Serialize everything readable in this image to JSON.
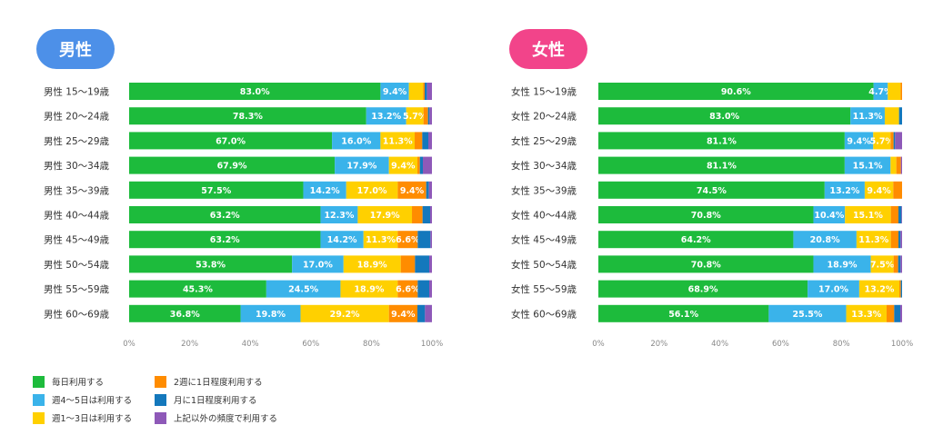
{
  "colors": {
    "male_badge": "#4d90e8",
    "female_badge": "#f2448a",
    "series": [
      "#1dbb3c",
      "#3ab3ea",
      "#ffd000",
      "#ff8c00",
      "#1478bc",
      "#8e59b8"
    ]
  },
  "legend": [
    {
      "label": "毎日利用する"
    },
    {
      "label": "週4～5日は利用する"
    },
    {
      "label": "週1～3日は利用する"
    },
    {
      "label": "2週に1日程度利用する"
    },
    {
      "label": "月に1日程度利用する"
    },
    {
      "label": "上記以外の頻度で利用する"
    }
  ],
  "chart_data": [
    {
      "type": "bar",
      "orientation": "horizontal",
      "stacked": true,
      "title": "男性",
      "categories": [
        "男性 15～19歳",
        "男性 20～24歳",
        "男性 25～29歳",
        "男性 30～34歳",
        "男性 35～39歳",
        "男性 40～44歳",
        "男性 45～49歳",
        "男性 50～54歳",
        "男性 55～59歳",
        "男性 60～69歳"
      ],
      "series": [
        {
          "name": "毎日利用する",
          "values": [
            83.0,
            78.3,
            67.0,
            67.9,
            57.5,
            63.2,
            63.2,
            53.8,
            45.3,
            36.8
          ]
        },
        {
          "name": "週4～5日は利用する",
          "values": [
            9.4,
            13.2,
            16.0,
            17.9,
            14.2,
            12.3,
            14.2,
            17.0,
            24.5,
            19.8
          ]
        },
        {
          "name": "週1～3日は利用する",
          "values": [
            4.7,
            5.7,
            11.3,
            9.4,
            17.0,
            17.9,
            11.3,
            18.9,
            18.9,
            29.2
          ]
        },
        {
          "name": "2週に1日程度利用する",
          "values": [
            0.5,
            1.5,
            2.5,
            0.8,
            9.4,
            3.5,
            6.6,
            4.7,
            6.6,
            9.4
          ]
        },
        {
          "name": "月に1日程度利用する",
          "values": [
            0.8,
            0.5,
            2.0,
            1.0,
            0.9,
            2.5,
            4.2,
            4.7,
            3.8,
            2.5
          ]
        },
        {
          "name": "上記以外の頻度で利用する",
          "values": [
            1.6,
            0.8,
            1.2,
            3.0,
            1.0,
            0.6,
            0.5,
            0.9,
            0.9,
            2.3
          ]
        }
      ],
      "value_labels": [
        [
          "83.0%",
          "9.4%",
          "",
          "",
          "",
          ""
        ],
        [
          "78.3%",
          "13.2%",
          "5.7%",
          "",
          "",
          ""
        ],
        [
          "67.0%",
          "16.0%",
          "11.3%",
          "",
          "",
          ""
        ],
        [
          "67.9%",
          "17.9%",
          "9.4%",
          "",
          "",
          ""
        ],
        [
          "57.5%",
          "14.2%",
          "17.0%",
          "9.4%",
          "",
          ""
        ],
        [
          "63.2%",
          "12.3%",
          "17.9%",
          "",
          "",
          ""
        ],
        [
          "63.2%",
          "14.2%",
          "11.3%",
          "6.6%",
          "",
          ""
        ],
        [
          "53.8%",
          "17.0%",
          "18.9%",
          "",
          "",
          ""
        ],
        [
          "45.3%",
          "24.5%",
          "18.9%",
          "6.6%",
          "",
          ""
        ],
        [
          "36.8%",
          "19.8%",
          "29.2%",
          "9.4%",
          "",
          ""
        ]
      ],
      "xlim": [
        0,
        100
      ],
      "xticks": [
        "0%",
        "20%",
        "40%",
        "60%",
        "80%",
        "100%"
      ]
    },
    {
      "type": "bar",
      "orientation": "horizontal",
      "stacked": true,
      "title": "女性",
      "categories": [
        "女性 15～19歳",
        "女性 20～24歳",
        "女性 25～29歳",
        "女性 30～34歳",
        "女性 35～39歳",
        "女性 40～44歳",
        "女性 45～49歳",
        "女性 50～54歳",
        "女性 55～59歳",
        "女性 60～69歳"
      ],
      "series": [
        {
          "name": "毎日利用する",
          "values": [
            90.6,
            83.0,
            81.1,
            81.1,
            74.5,
            70.8,
            64.2,
            70.8,
            68.9,
            56.1
          ]
        },
        {
          "name": "週4～5日は利用する",
          "values": [
            4.7,
            11.3,
            9.4,
            15.1,
            13.2,
            10.4,
            20.8,
            18.9,
            17.0,
            25.5
          ]
        },
        {
          "name": "週1～3日は利用する",
          "values": [
            4.2,
            4.7,
            5.7,
            1.9,
            9.4,
            15.1,
            11.3,
            7.5,
            13.2,
            13.3
          ]
        },
        {
          "name": "2週に1日程度利用する",
          "values": [
            0.5,
            0.0,
            1.0,
            1.5,
            2.9,
            2.5,
            2.5,
            1.5,
            0.5,
            2.5
          ]
        },
        {
          "name": "月に1日程度利用する",
          "values": [
            0.0,
            1.0,
            0.5,
            0.0,
            0.0,
            1.0,
            0.7,
            0.8,
            0.4,
            2.0
          ]
        },
        {
          "name": "上記以外の頻度で利用する",
          "values": [
            0.0,
            0.0,
            2.3,
            0.4,
            0.0,
            0.2,
            0.5,
            0.5,
            0.0,
            0.6
          ]
        }
      ],
      "value_labels": [
        [
          "90.6%",
          "4.7%",
          "",
          "",
          "",
          ""
        ],
        [
          "83.0%",
          "11.3%",
          "",
          "",
          "",
          ""
        ],
        [
          "81.1%",
          "9.4%",
          "5.7%",
          "",
          "",
          ""
        ],
        [
          "81.1%",
          "15.1%",
          "",
          "",
          "",
          ""
        ],
        [
          "74.5%",
          "13.2%",
          "9.4%",
          "",
          "",
          ""
        ],
        [
          "70.8%",
          "10.4%",
          "15.1%",
          "",
          "",
          ""
        ],
        [
          "64.2%",
          "20.8%",
          "11.3%",
          "",
          "",
          ""
        ],
        [
          "70.8%",
          "18.9%",
          "7.5%",
          "",
          "",
          ""
        ],
        [
          "68.9%",
          "17.0%",
          "13.2%",
          "",
          "",
          ""
        ],
        [
          "56.1%",
          "25.5%",
          "13.3%",
          "",
          "",
          ""
        ]
      ],
      "xlim": [
        0,
        100
      ],
      "xticks": [
        "0%",
        "20%",
        "40%",
        "60%",
        "80%",
        "100%"
      ]
    }
  ]
}
